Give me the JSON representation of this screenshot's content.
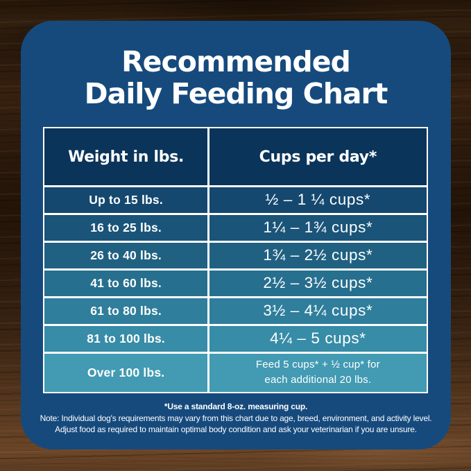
{
  "title": {
    "line1": "Recommended",
    "line2": "Daily Feeding Chart"
  },
  "table": {
    "headers": [
      "Weight in lbs.",
      "Cups per day*"
    ],
    "rows": [
      {
        "weight": "Up to 15 lbs.",
        "cups": "½ – 1 ¼ cups*"
      },
      {
        "weight": "16 to 25 lbs.",
        "cups": "1¼ – 1¾  cups*"
      },
      {
        "weight": "26 to 40 lbs.",
        "cups": "1¾ – 2½ cups*"
      },
      {
        "weight": "41 to 60 lbs.",
        "cups": "2½ – 3½ cups*"
      },
      {
        "weight": "61 to 80 lbs.",
        "cups": "3½ – 4¼ cups*"
      },
      {
        "weight": "81 to 100 lbs.",
        "cups": "4¼ – 5 cups*"
      },
      {
        "weight": "Over 100 lbs.",
        "cups": "Feed 5 cups* + ½ cup* for each additional 20 lbs."
      }
    ],
    "header_color": "#0a3459",
    "row_colors": [
      "#15486f",
      "#1a5478",
      "#206181",
      "#276f8e",
      "#2f7e9b",
      "#378ca7",
      "#429ab3"
    ]
  },
  "notes": {
    "line1": "*Use a standard 8-oz. measuring cup.",
    "line2": "Note: Individual dog's requirements may vary from this chart due to age, breed, environment, and activity level.",
    "line3": "Adjust food as required to maintain optimal body condition and ask your veterinarian if you are unsure."
  },
  "colors": {
    "card_background": "#164a7d",
    "table_border": "#ffffff",
    "text": "#ffffff",
    "wood_dark": "#241508",
    "wood_light": "#6d4628"
  },
  "chart_data": {
    "type": "table",
    "title": "Recommended Daily Feeding Chart",
    "columns": [
      "Weight in lbs.",
      "Cups per day*"
    ],
    "rows": [
      [
        "Up to 15 lbs.",
        "½ – 1 ¼ cups*"
      ],
      [
        "16 to 25 lbs.",
        "1¼ – 1¾ cups*"
      ],
      [
        "26 to 40 lbs.",
        "1¾ – 2½ cups*"
      ],
      [
        "41 to 60 lbs.",
        "2½ – 3½ cups*"
      ],
      [
        "61 to 80 lbs.",
        "3½ – 4¼ cups*"
      ],
      [
        "81 to 100 lbs.",
        "4¼ – 5 cups*"
      ],
      [
        "Over 100 lbs.",
        "Feed 5 cups* + ½ cup* for each additional 20 lbs."
      ]
    ],
    "numeric": [
      {
        "weight_min_lbs": 0,
        "weight_max_lbs": 15,
        "cups_min": 0.5,
        "cups_max": 1.25
      },
      {
        "weight_min_lbs": 16,
        "weight_max_lbs": 25,
        "cups_min": 1.25,
        "cups_max": 1.75
      },
      {
        "weight_min_lbs": 26,
        "weight_max_lbs": 40,
        "cups_min": 1.75,
        "cups_max": 2.5
      },
      {
        "weight_min_lbs": 41,
        "weight_max_lbs": 60,
        "cups_min": 2.5,
        "cups_max": 3.5
      },
      {
        "weight_min_lbs": 61,
        "weight_max_lbs": 80,
        "cups_min": 3.5,
        "cups_max": 4.25
      },
      {
        "weight_min_lbs": 81,
        "weight_max_lbs": 100,
        "cups_min": 4.25,
        "cups_max": 5
      },
      {
        "weight_min_lbs": 101,
        "weight_max_lbs": null,
        "rule": "Feed 5 cups + ½ cup for each additional 20 lbs."
      }
    ],
    "footnote": "*Use a standard 8-oz. measuring cup."
  }
}
